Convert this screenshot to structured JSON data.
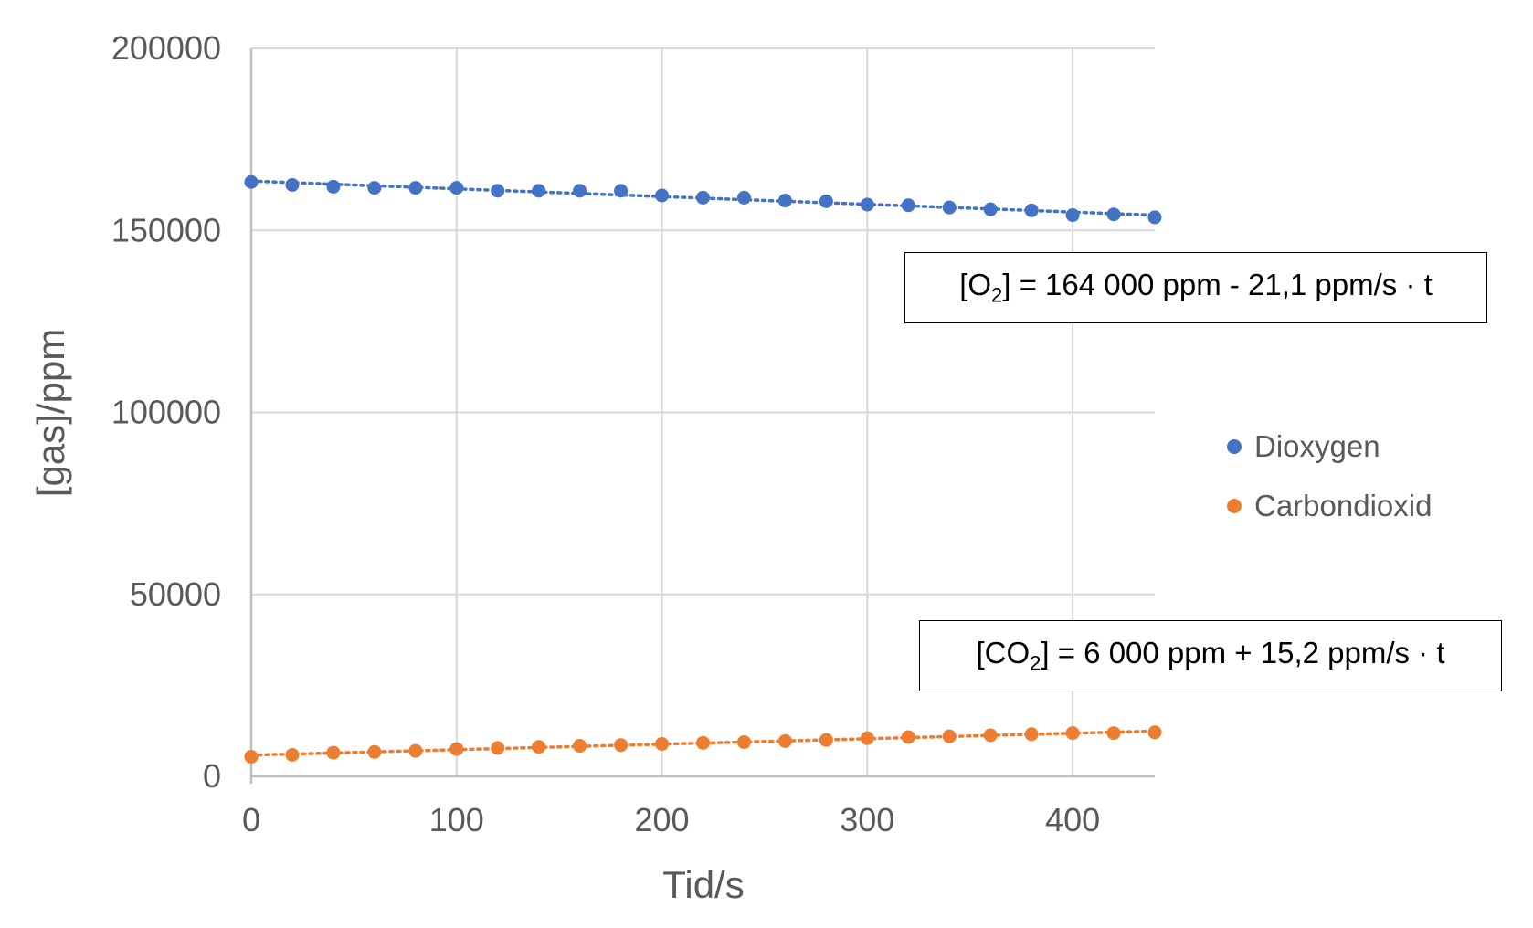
{
  "chart_data": {
    "type": "scatter",
    "xlabel": "Tid/s",
    "ylabel": "[gas]/ppm",
    "xlim": [
      0,
      440
    ],
    "ylim": [
      0,
      200000
    ],
    "xticks": [
      0,
      100,
      200,
      300,
      400
    ],
    "yticks": [
      0,
      50000,
      100000,
      150000,
      200000
    ],
    "grid": true,
    "legend_position": "right",
    "x": [
      0,
      20,
      40,
      60,
      80,
      100,
      120,
      140,
      160,
      180,
      200,
      220,
      240,
      260,
      280,
      300,
      320,
      340,
      360,
      380,
      400,
      420,
      440
    ],
    "series": [
      {
        "name": "Dioxygen",
        "color": "#4472C4",
        "trendline": "linear-dotted",
        "values": [
          163300,
          162500,
          162000,
          161700,
          161700,
          161700,
          160900,
          160900,
          160900,
          160900,
          159600,
          159000,
          159000,
          158200,
          158000,
          157100,
          156900,
          156300,
          155800,
          155500,
          154200,
          154400,
          153600
        ]
      },
      {
        "name": "Carbondioxid",
        "color": "#ED7D31",
        "trendline": "linear-dotted",
        "values": [
          5400,
          5900,
          6500,
          6700,
          7000,
          7500,
          7800,
          8100,
          8400,
          8600,
          8900,
          9200,
          9400,
          9700,
          10000,
          10500,
          10800,
          11000,
          11300,
          11600,
          11900,
          11900,
          12100
        ]
      }
    ],
    "annotations": {
      "o2_pre": "[O",
      "o2_sub": "2",
      "o2_post": "] = 164 000 ppm - 21,1 ppm/s · t",
      "co2_pre": "[CO",
      "co2_sub": "2",
      "co2_post": "] = 6 000 ppm + 15,2 ppm/s · t"
    }
  }
}
